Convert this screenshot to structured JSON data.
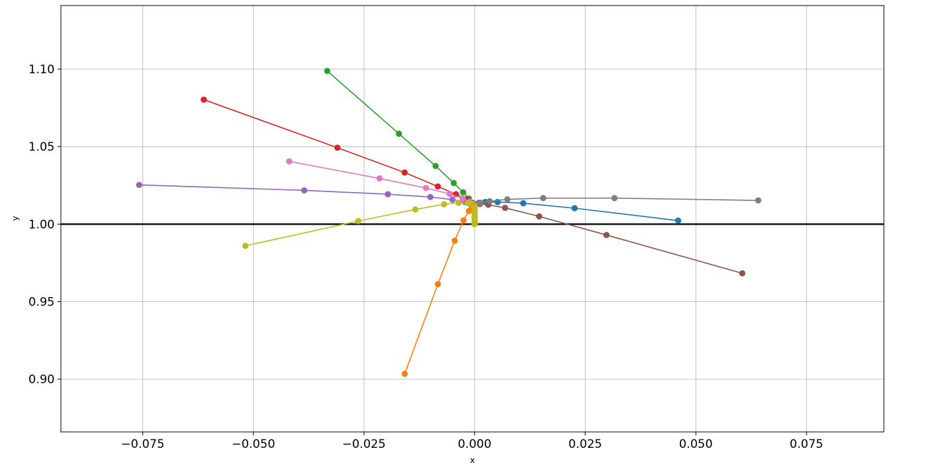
{
  "chart_data": {
    "type": "line",
    "title": "",
    "xlabel": "x",
    "ylabel": "y",
    "xlim": [
      -0.0935,
      0.0925
    ],
    "ylim": [
      0.866,
      1.141
    ],
    "grid": true,
    "legend": "none",
    "x_ticks": [
      {
        "value": -0.075,
        "label": "−0.075"
      },
      {
        "value": -0.05,
        "label": "−0.050"
      },
      {
        "value": -0.025,
        "label": "−0.025"
      },
      {
        "value": 0.0,
        "label": "0.000"
      },
      {
        "value": 0.025,
        "label": "0.025"
      },
      {
        "value": 0.05,
        "label": "0.050"
      },
      {
        "value": 0.075,
        "label": "0.075"
      }
    ],
    "y_ticks": [
      {
        "value": 0.9,
        "label": "0.90"
      },
      {
        "value": 0.95,
        "label": "0.95"
      },
      {
        "value": 1.0,
        "label": "1.00"
      },
      {
        "value": 1.05,
        "label": "1.05"
      },
      {
        "value": 1.1,
        "label": "1.10"
      }
    ],
    "reference_lines": [
      {
        "orientation": "horizontal",
        "y": 1.0,
        "color": "#000000"
      }
    ],
    "series": [
      {
        "color": "#1f77b4",
        "points": [
          [
            0.046,
            1.0023
          ],
          [
            0.0226,
            1.0103
          ],
          [
            0.011,
            1.0135
          ],
          [
            0.0052,
            1.0143
          ],
          [
            0.0024,
            1.0143
          ],
          [
            0.001,
            1.0138
          ],
          [
            0.0003,
            1.013
          ],
          [
            0.0,
            1.012
          ]
        ]
      },
      {
        "color": "#ff7f0e",
        "points": [
          [
            -0.0158,
            0.9035
          ],
          [
            -0.0083,
            0.9613
          ],
          [
            -0.0045,
            0.9893
          ],
          [
            -0.0025,
            1.0025
          ],
          [
            -0.0013,
            1.0085
          ],
          [
            -0.0006,
            1.011
          ],
          [
            -0.0002,
            1.0118
          ],
          [
            0.0,
            1.012
          ]
        ]
      },
      {
        "color": "#2ca02c",
        "points": [
          [
            -0.0333,
            1.0988
          ],
          [
            -0.0171,
            1.0583
          ],
          [
            -0.0088,
            1.0375
          ],
          [
            -0.0047,
            1.0265
          ],
          [
            -0.0026,
            1.0205
          ],
          [
            -0.0013,
            1.0165
          ],
          [
            -0.0005,
            1.0138
          ],
          [
            0.0,
            1.012
          ]
        ]
      },
      {
        "color": "#d62728",
        "points": [
          [
            -0.0612,
            1.0803
          ],
          [
            -0.031,
            1.0493
          ],
          [
            -0.0158,
            1.0333
          ],
          [
            -0.0083,
            1.0243
          ],
          [
            -0.0042,
            1.0193
          ],
          [
            -0.0018,
            1.016
          ],
          [
            -0.0006,
            1.0138
          ],
          [
            0.0,
            1.012
          ]
        ]
      },
      {
        "color": "#9467bd",
        "points": [
          [
            -0.0758,
            1.0253
          ],
          [
            -0.0385,
            1.0218
          ],
          [
            -0.0196,
            1.0193
          ],
          [
            -0.01,
            1.0175
          ],
          [
            -0.005,
            1.0158
          ],
          [
            -0.0022,
            1.0143
          ],
          [
            -0.0007,
            1.013
          ],
          [
            0.0,
            1.012
          ]
        ]
      },
      {
        "color": "#8c564b",
        "points": [
          [
            0.0605,
            0.9683
          ],
          [
            0.0298,
            0.993
          ],
          [
            0.0146,
            1.005
          ],
          [
            0.0069,
            1.0105
          ],
          [
            0.0031,
            1.0125
          ],
          [
            0.0012,
            1.013
          ],
          [
            0.0003,
            1.0125
          ],
          [
            0.0,
            1.012
          ]
        ]
      },
      {
        "color": "#e377c2",
        "points": [
          [
            -0.0419,
            1.0405
          ],
          [
            -0.0215,
            1.0295
          ],
          [
            -0.011,
            1.0233
          ],
          [
            -0.0056,
            1.0195
          ],
          [
            -0.0027,
            1.0165
          ],
          [
            -0.0011,
            1.0145
          ],
          [
            -0.0003,
            1.013
          ],
          [
            0.0,
            1.012
          ]
        ]
      },
      {
        "color": "#7f7f7f",
        "points": [
          [
            0.0641,
            1.0153
          ],
          [
            0.0316,
            1.0168
          ],
          [
            0.0155,
            1.0168
          ],
          [
            0.0074,
            1.016
          ],
          [
            0.0034,
            1.0148
          ],
          [
            0.0013,
            1.0138
          ],
          [
            0.0004,
            1.0128
          ],
          [
            0.0,
            1.012
          ]
        ]
      },
      {
        "color": "#bcbd22",
        "points": [
          [
            -0.0518,
            0.986
          ],
          [
            -0.0263,
            1.002
          ],
          [
            -0.0134,
            1.0095
          ],
          [
            -0.0069,
            1.0128
          ],
          [
            -0.0036,
            1.0138
          ],
          [
            -0.0015,
            1.0135
          ],
          [
            -0.0005,
            1.0128
          ],
          [
            0.0,
            1.012
          ]
        ]
      },
      {
        "color": "#ff7f0e",
        "points": [
          [
            0.0,
            1.012
          ],
          [
            0.0,
            1.009
          ],
          [
            0.0,
            1.007
          ],
          [
            0.0,
            1.005
          ],
          [
            0.0,
            1.003
          ],
          [
            0.0,
            1.0015
          ],
          [
            0.0,
            1.0005
          ],
          [
            0.0,
            1.0
          ]
        ]
      },
      {
        "color": "#bcbd22",
        "points": [
          [
            0.0,
            1.011
          ],
          [
            0.0,
            1.008
          ],
          [
            0.0,
            1.006
          ],
          [
            0.0,
            1.004
          ],
          [
            0.0,
            1.0025
          ],
          [
            0.0,
            1.001
          ],
          [
            0.0,
            1.0003
          ],
          [
            0.0,
            1.0
          ]
        ]
      }
    ]
  }
}
